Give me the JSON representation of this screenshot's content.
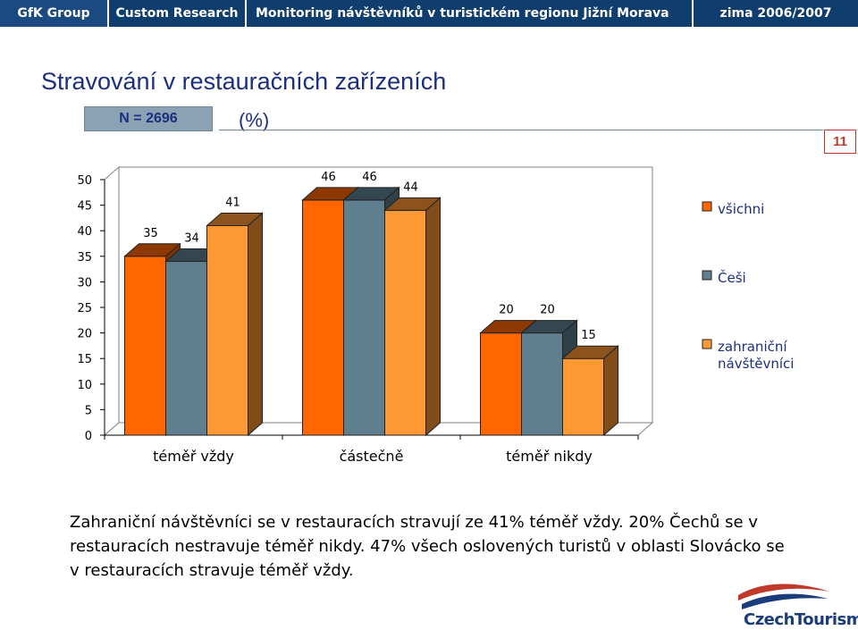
{
  "header": {
    "company": "GfK Group",
    "division": "Custom Research",
    "project": "Monitoring návštěvníků v turistickém regionu Jižní Morava",
    "season": "zima 2006/2007"
  },
  "slide": {
    "title": "Stravování v restauračních zařízeních",
    "sample": "N = 2696",
    "unit": "(%)",
    "page_number": "11"
  },
  "chart_data": {
    "type": "bar",
    "categories": [
      "téměř vždy",
      "částečně",
      "téměř nikdy"
    ],
    "series": [
      {
        "name": "všichni",
        "values": [
          35,
          46,
          20
        ],
        "color": "#ff6600"
      },
      {
        "name": "Češi",
        "values": [
          34,
          46,
          20
        ],
        "color": "#5f7f8f"
      },
      {
        "name": "zahraniční návštěvníci",
        "values": [
          41,
          44,
          15
        ],
        "color": "#ff9933"
      }
    ],
    "ylim": [
      0,
      50
    ],
    "yticks": [
      "0",
      "5",
      "10",
      "15",
      "20",
      "25",
      "30",
      "35",
      "40",
      "45",
      "50"
    ],
    "grid": false,
    "legend_position": "right",
    "title": "",
    "xlabel": "",
    "ylabel": ""
  },
  "summary": "Zahraniční návštěvníci se v restauracích stravují ze 41% téměř vždy. 20% Čechů se v restauracích nestravuje téměř nikdy. 47% všech oslovených turistů v oblasti Slovácko se v restauracích stravuje téměř vždy.",
  "logo": {
    "text": "CzechTourism"
  }
}
